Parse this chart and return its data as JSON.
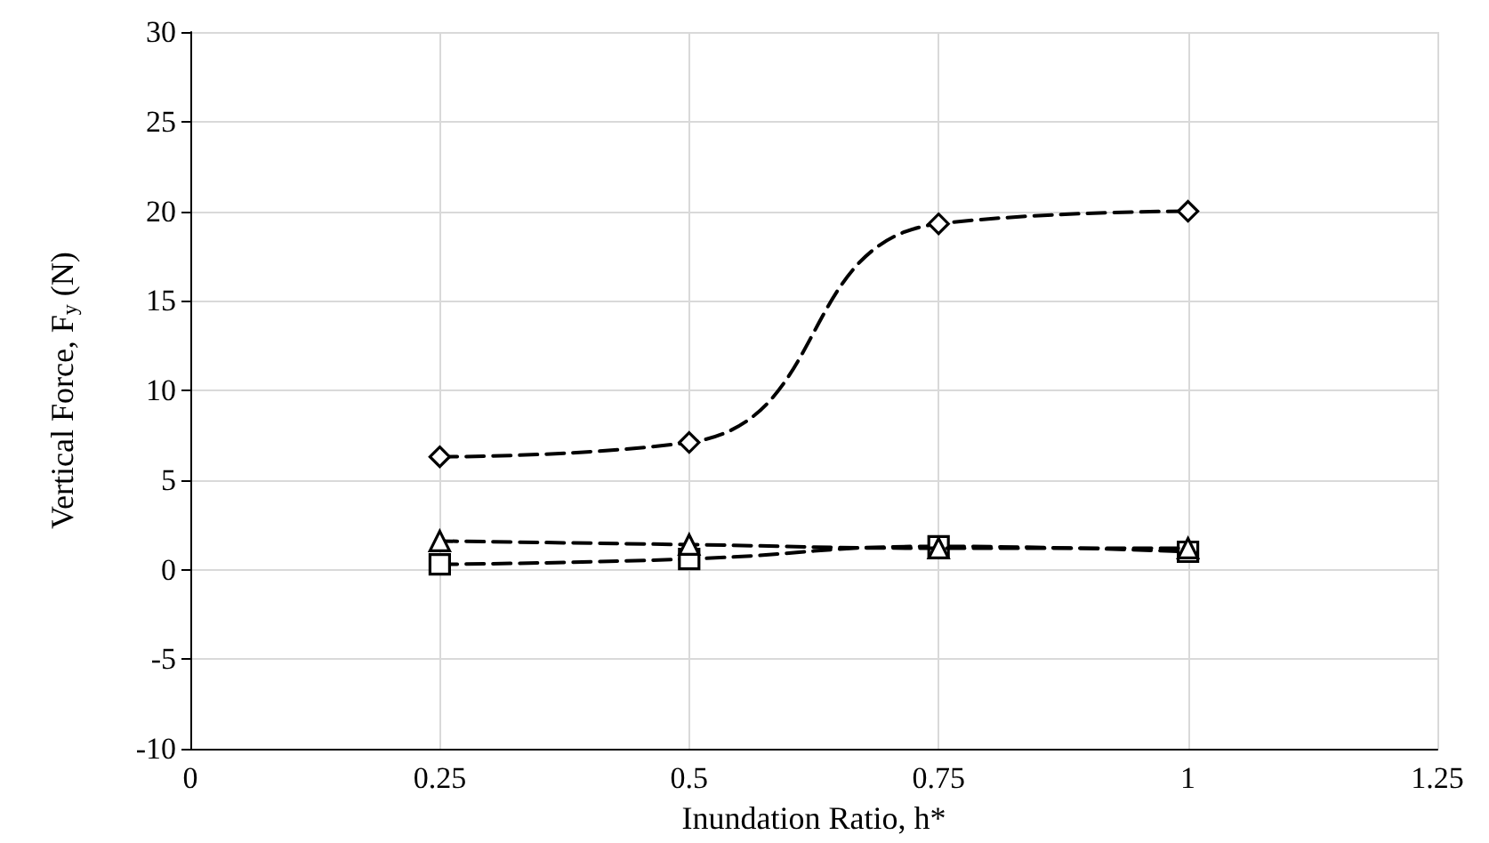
{
  "chart_data": {
    "type": "line",
    "xlabel": "Inundation Ratio, h*",
    "ylabel": "Vertical Force, F$_{y}$ (N)",
    "x": [
      0.25,
      0.5,
      0.75,
      1
    ],
    "series": [
      {
        "color": "#000000",
        "marker": "diamond",
        "values": [
          6.3,
          7.1,
          19.3,
          20.0
        ]
      },
      {
        "color": "#000000",
        "marker": "triangle",
        "values": [
          1.6,
          1.4,
          1.2,
          1.2
        ]
      },
      {
        "color": "#000000",
        "marker": "square",
        "values": [
          0.3,
          0.6,
          1.3,
          1.0
        ]
      }
    ],
    "xlim": [
      0,
      1.25
    ],
    "xticks": [
      0,
      0.25,
      0.5,
      0.75,
      1,
      1.25
    ],
    "ylim": [
      -10,
      30
    ],
    "yticks": [
      -10,
      -5,
      0,
      5,
      10,
      15,
      20,
      25,
      30
    ],
    "grid": true,
    "line_style": "dashed"
  }
}
